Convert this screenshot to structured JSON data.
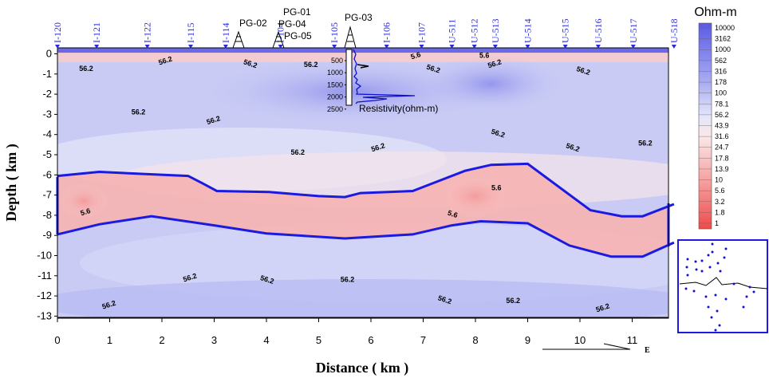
{
  "chart_data": {
    "type": "heatmap",
    "xlabel": "Distance ( km )",
    "ylabel": "Depth ( km )",
    "xlim": [
      0,
      11.8
    ],
    "ylim": [
      -13,
      0.2
    ],
    "x_ticks": [
      "0",
      "1",
      "2",
      "3",
      "4",
      "5",
      "6",
      "7",
      "8",
      "9",
      "10",
      "11"
    ],
    "y_ticks": [
      "0",
      "-1",
      "-2",
      "-3",
      "-4",
      "-5",
      "-6",
      "-7",
      "-8",
      "-9",
      "-10",
      "-11",
      "-12",
      "-13"
    ],
    "colorbar": {
      "title": "Ohm-m",
      "labels": [
        "10000",
        "3162",
        "1000",
        "562",
        "316",
        "178",
        "100",
        "78.1",
        "56.2",
        "43.9",
        "31.6",
        "24.7",
        "17.8",
        "13.9",
        "10",
        "5.6",
        "3.2",
        "1.8",
        "1"
      ],
      "high_color": "#5a5ae6",
      "mid_color": "#f2f2fa",
      "low_color": "#f05050"
    },
    "stations": [
      {
        "name": "I-120",
        "x": 0.0
      },
      {
        "name": "I-121",
        "x": 0.75
      },
      {
        "name": "I-122",
        "x": 1.72
      },
      {
        "name": "I-115",
        "x": 2.55
      },
      {
        "name": "I-114",
        "x": 3.22
      },
      {
        "name": "I-104",
        "x": 4.27
      },
      {
        "name": "I-105",
        "x": 5.3
      },
      {
        "name": "I-106",
        "x": 6.3
      },
      {
        "name": "I-107",
        "x": 6.97
      },
      {
        "name": "U-511",
        "x": 7.55
      },
      {
        "name": "U-512",
        "x": 7.98
      },
      {
        "name": "U-513",
        "x": 8.38
      },
      {
        "name": "U-514",
        "x": 9.0
      },
      {
        "name": "U-515",
        "x": 9.72
      },
      {
        "name": "U-516",
        "x": 10.35
      },
      {
        "name": "U-517",
        "x": 11.02
      },
      {
        "name": "U-518",
        "x": 11.8
      }
    ],
    "wells": [
      {
        "name": "PG-02",
        "x": 3.5
      },
      {
        "name": "PG-01",
        "x": 4.27
      },
      {
        "name": "PG-04",
        "x": 4.27
      },
      {
        "name": "PG-05",
        "x": 4.27
      },
      {
        "name": "PG-03",
        "x": 5.65
      }
    ],
    "contour_labels": [
      {
        "text": "56.2",
        "x": 0.55,
        "y": -0.85
      },
      {
        "text": "56.2",
        "x": 2.08,
        "y": -0.45
      },
      {
        "text": "56.2",
        "x": 3.68,
        "y": -0.6
      },
      {
        "text": "56.2",
        "x": 4.85,
        "y": -0.65
      },
      {
        "text": "5.6",
        "x": 6.87,
        "y": -0.2
      },
      {
        "text": "56.2",
        "x": 7.18,
        "y": -0.85
      },
      {
        "text": "5.6",
        "x": 8.17,
        "y": -0.2
      },
      {
        "text": "56.2",
        "x": 8.38,
        "y": -0.6
      },
      {
        "text": "56.2",
        "x": 10.05,
        "y": -0.95
      },
      {
        "text": "56.2",
        "x": 1.55,
        "y": -3.0
      },
      {
        "text": "56.2",
        "x": 3.0,
        "y": -3.4
      },
      {
        "text": "56.2",
        "x": 8.42,
        "y": -4.05
      },
      {
        "text": "56.2",
        "x": 4.6,
        "y": -5.0
      },
      {
        "text": "56.2",
        "x": 6.15,
        "y": -4.75
      },
      {
        "text": "56.2",
        "x": 9.85,
        "y": -4.75
      },
      {
        "text": "56.2",
        "x": 11.25,
        "y": -4.55
      },
      {
        "text": "5.6",
        "x": 0.55,
        "y": -7.95
      },
      {
        "text": "5.6",
        "x": 7.55,
        "y": -8.05
      },
      {
        "text": "5.6",
        "x": 8.4,
        "y": -6.75
      },
      {
        "text": "56.2",
        "x": 2.55,
        "y": -11.2
      },
      {
        "text": "56.2",
        "x": 4.0,
        "y": -11.3
      },
      {
        "text": "56.2",
        "x": 5.55,
        "y": -11.3
      },
      {
        "text": "56.2",
        "x": 1.0,
        "y": -12.55
      },
      {
        "text": "56.2",
        "x": 7.4,
        "y": -12.3
      },
      {
        "text": "56.2",
        "x": 8.72,
        "y": -12.35
      },
      {
        "text": "56.2",
        "x": 10.45,
        "y": -12.7
      }
    ],
    "conductor_top": [
      [
        0,
        -6.05
      ],
      [
        0.8,
        -5.85
      ],
      [
        1.6,
        -5.95
      ],
      [
        2.5,
        -6.05
      ],
      [
        2.8,
        -6.45
      ],
      [
        3.05,
        -6.8
      ],
      [
        4.05,
        -6.85
      ],
      [
        5.0,
        -7.05
      ],
      [
        5.5,
        -7.1
      ],
      [
        5.8,
        -6.9
      ],
      [
        6.8,
        -6.8
      ],
      [
        7.2,
        -6.4
      ],
      [
        7.8,
        -5.8
      ],
      [
        8.3,
        -5.5
      ],
      [
        9.0,
        -5.45
      ],
      [
        10.2,
        -7.75
      ],
      [
        10.8,
        -8.05
      ],
      [
        11.2,
        -8.05
      ],
      [
        11.8,
        -7.45
      ]
    ],
    "conductor_bottom": [
      [
        0,
        -8.95
      ],
      [
        0.8,
        -8.45
      ],
      [
        1.8,
        -8.05
      ],
      [
        3.0,
        -8.5
      ],
      [
        4.0,
        -8.9
      ],
      [
        5.5,
        -9.15
      ],
      [
        6.8,
        -8.95
      ],
      [
        7.55,
        -8.5
      ],
      [
        8.1,
        -8.3
      ],
      [
        9.0,
        -8.4
      ],
      [
        9.8,
        -9.5
      ],
      [
        10.6,
        -10.05
      ],
      [
        11.2,
        -10.05
      ],
      [
        11.8,
        -9.35
      ]
    ],
    "resistivity_log": {
      "label": "Resistivity(ohm-m)",
      "depth_ticks": [
        "500",
        "1000",
        "1500",
        "2000",
        "2500"
      ]
    },
    "north_arrow_label": "E"
  }
}
